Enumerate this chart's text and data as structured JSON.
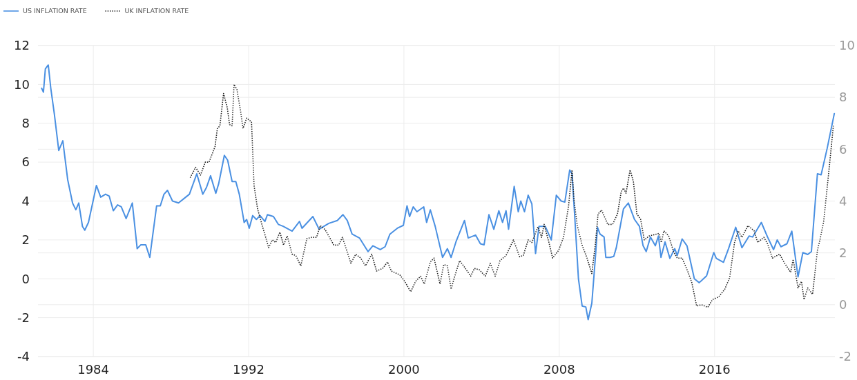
{
  "chart_data": {
    "type": "line",
    "xlim": [
      1981.15,
      2022.2
    ],
    "xticks": [
      1984,
      1992,
      2000,
      2008,
      2016
    ],
    "ylim": [
      -4,
      12
    ],
    "yticks": [
      -4,
      -2,
      0,
      2,
      4,
      6,
      8,
      10,
      12
    ],
    "y2lim": [
      -2,
      10
    ],
    "y2ticks": [
      -2,
      0,
      2,
      4,
      6,
      8,
      10
    ],
    "grid": true,
    "legend": "top left",
    "marker": "none",
    "series": [
      {
        "name": "US INFLATION RATE",
        "color": "#4a90e2",
        "line_style": "solid",
        "x": [
          1981.34,
          1981.43,
          1981.53,
          1981.68,
          1981.81,
          1981.99,
          1982.22,
          1982.43,
          1982.68,
          1982.93,
          1983.1,
          1983.25,
          1983.44,
          1983.56,
          1983.75,
          1984.16,
          1984.38,
          1984.63,
          1984.82,
          1985.03,
          1985.25,
          1985.44,
          1985.69,
          1986.01,
          1986.26,
          1986.45,
          1986.7,
          1986.91,
          1987.26,
          1987.45,
          1987.64,
          1987.82,
          1988.08,
          1988.39,
          1988.76,
          1988.95,
          1989.33,
          1989.64,
          1989.83,
          1990.04,
          1990.31,
          1990.46,
          1990.75,
          1990.92,
          1991.15,
          1991.34,
          1991.52,
          1991.77,
          1991.9,
          1992.03,
          1992.21,
          1992.4,
          1992.59,
          1992.84,
          1992.97,
          1993.28,
          1993.53,
          1993.78,
          1994.24,
          1994.62,
          1994.75,
          1995.31,
          1995.63,
          1996.13,
          1996.57,
          1996.86,
          1997.08,
          1997.33,
          1997.71,
          1998.15,
          1998.4,
          1998.78,
          1999.03,
          1999.28,
          1999.66,
          1999.97,
          2000.16,
          2000.29,
          2000.48,
          2000.67,
          2001.02,
          2001.17,
          2001.36,
          2001.61,
          2001.99,
          2002.24,
          2002.43,
          2002.68,
          2003.12,
          2003.31,
          2003.69,
          2003.94,
          2004.13,
          2004.38,
          2004.63,
          2004.89,
          2005.08,
          2005.26,
          2005.39,
          2005.68,
          2005.89,
          2006.02,
          2006.21,
          2006.4,
          2006.59,
          2006.78,
          2006.96,
          2007.28,
          2007.59,
          2007.85,
          2008.1,
          2008.29,
          2008.54,
          2008.66,
          2008.79,
          2008.99,
          2009.18,
          2009.37,
          2009.49,
          2009.68,
          2009.87,
          2009.97,
          2010.1,
          2010.31,
          2010.4,
          2010.62,
          2010.81,
          2010.94,
          2011.31,
          2011.56,
          2011.88,
          2012.13,
          2012.32,
          2012.48,
          2012.7,
          2012.95,
          2013.11,
          2013.24,
          2013.45,
          2013.7,
          2013.95,
          2014.08,
          2014.33,
          2014.58,
          2014.96,
          2015.21,
          2015.59,
          2015.96,
          2016.09,
          2016.46,
          2016.72,
          2017.09,
          2017.41,
          2017.78,
          2017.96,
          2018.41,
          2018.73,
          2019.04,
          2019.23,
          2019.42,
          2019.73,
          2019.98,
          2020.3,
          2020.55,
          2020.8,
          2020.99,
          2021.3,
          2021.49,
          2021.8,
          2022.17
        ],
        "values": [
          9.8,
          9.6,
          10.8,
          11.0,
          9.8,
          8.5,
          6.6,
          7.1,
          5.1,
          3.9,
          3.55,
          3.9,
          2.7,
          2.5,
          2.9,
          4.8,
          4.2,
          4.35,
          4.25,
          3.5,
          3.8,
          3.7,
          3.1,
          3.9,
          1.55,
          1.75,
          1.75,
          1.1,
          3.75,
          3.75,
          4.35,
          4.55,
          4.0,
          3.9,
          4.2,
          4.35,
          5.4,
          4.35,
          4.7,
          5.3,
          4.4,
          4.9,
          6.35,
          6.1,
          5.0,
          5.0,
          4.35,
          2.9,
          3.05,
          2.6,
          3.25,
          3.05,
          3.25,
          2.95,
          3.3,
          3.2,
          2.8,
          2.7,
          2.45,
          2.95,
          2.6,
          3.2,
          2.55,
          2.85,
          3.0,
          3.3,
          3.0,
          2.3,
          2.1,
          1.4,
          1.7,
          1.5,
          1.65,
          2.3,
          2.6,
          2.75,
          3.75,
          3.2,
          3.7,
          3.45,
          3.7,
          2.9,
          3.55,
          2.7,
          1.1,
          1.55,
          1.1,
          1.9,
          3.0,
          2.1,
          2.25,
          1.8,
          1.75,
          3.3,
          2.55,
          3.5,
          2.9,
          3.5,
          2.55,
          4.75,
          3.45,
          4.0,
          3.45,
          4.3,
          3.85,
          1.3,
          2.7,
          2.7,
          2.0,
          4.3,
          4.0,
          3.95,
          5.6,
          5.4,
          3.35,
          0.0,
          -1.4,
          -1.45,
          -2.1,
          -1.25,
          1.2,
          2.65,
          2.3,
          2.15,
          1.1,
          1.1,
          1.15,
          1.6,
          3.6,
          3.9,
          3.05,
          2.7,
          1.7,
          1.4,
          2.15,
          1.7,
          2.2,
          1.1,
          1.9,
          1.05,
          1.55,
          1.2,
          2.05,
          1.7,
          0.0,
          -0.2,
          0.15,
          1.35,
          1.05,
          0.85,
          1.55,
          2.65,
          1.6,
          2.2,
          2.15,
          2.9,
          2.15,
          1.5,
          2.0,
          1.65,
          1.8,
          2.45,
          0.1,
          1.35,
          1.25,
          1.4,
          5.4,
          5.35,
          6.7,
          8.5
        ]
      },
      {
        "name": "UK INFLATION RATE",
        "color": "#222222",
        "line_style": "dotted",
        "axis": "y2",
        "x": [
          1988.99,
          1989.27,
          1989.52,
          1989.77,
          1989.96,
          1990.27,
          1990.39,
          1990.52,
          1990.71,
          1990.9,
          1991.02,
          1991.15,
          1991.25,
          1991.4,
          1991.59,
          1991.71,
          1991.9,
          1992.15,
          1992.28,
          1992.46,
          1992.72,
          1992.9,
          1993.03,
          1993.22,
          1993.4,
          1993.61,
          1993.8,
          1993.99,
          1994.24,
          1994.43,
          1994.69,
          1995.0,
          1995.25,
          1995.5,
          1995.69,
          1995.94,
          1996.39,
          1996.64,
          1996.83,
          1997.27,
          1997.52,
          1997.77,
          1998.02,
          1998.34,
          1998.59,
          1998.9,
          1999.16,
          1999.35,
          1999.79,
          2000.04,
          2000.35,
          2000.6,
          2000.86,
          2001.05,
          2001.36,
          2001.55,
          2001.86,
          2002.05,
          2002.24,
          2002.43,
          2002.62,
          2002.87,
          2003.12,
          2003.44,
          2003.63,
          2003.88,
          2004.19,
          2004.45,
          2004.7,
          2004.95,
          2005.26,
          2005.64,
          2005.96,
          2006.15,
          2006.4,
          2006.59,
          2006.9,
          2007.09,
          2007.22,
          2007.47,
          2007.66,
          2007.97,
          2008.22,
          2008.48,
          2008.66,
          2008.76,
          2008.93,
          2009.18,
          2009.43,
          2009.68,
          2009.87,
          2010.0,
          2010.18,
          2010.5,
          2010.75,
          2011.0,
          2011.19,
          2011.31,
          2011.44,
          2011.65,
          2011.82,
          2012.0,
          2012.19,
          2012.38,
          2012.63,
          2012.88,
          2013.14,
          2013.26,
          2013.39,
          2013.64,
          2013.89,
          2014.08,
          2014.33,
          2014.64,
          2014.83,
          2015.08,
          2015.33,
          2015.65,
          2015.9,
          2016.21,
          2016.53,
          2016.78,
          2017.03,
          2017.22,
          2017.41,
          2017.72,
          2018.04,
          2018.22,
          2018.54,
          2018.73,
          2018.98,
          2019.35,
          2019.61,
          2019.92,
          2020.05,
          2020.3,
          2020.48,
          2020.61,
          2020.8,
          2021.05,
          2021.3,
          2021.43,
          2021.62,
          2021.93,
          2022.12
        ],
        "values": [
          4.9,
          5.3,
          5.0,
          5.5,
          5.5,
          6.1,
          6.8,
          6.9,
          8.15,
          7.6,
          6.95,
          6.9,
          8.5,
          8.3,
          7.45,
          6.8,
          7.2,
          7.05,
          4.6,
          3.7,
          3.0,
          2.55,
          2.2,
          2.5,
          2.4,
          2.8,
          2.3,
          2.65,
          1.95,
          1.9,
          1.5,
          2.55,
          2.6,
          2.6,
          3.05,
          2.9,
          2.3,
          2.3,
          2.6,
          1.6,
          1.95,
          1.8,
          1.5,
          1.95,
          1.3,
          1.4,
          1.65,
          1.3,
          1.15,
          0.9,
          0.5,
          0.9,
          1.1,
          0.8,
          1.65,
          1.8,
          0.8,
          1.55,
          1.5,
          0.6,
          1.1,
          1.7,
          1.45,
          1.1,
          1.4,
          1.35,
          1.1,
          1.6,
          1.1,
          1.7,
          1.9,
          2.5,
          1.85,
          1.9,
          2.5,
          2.4,
          3.0,
          2.6,
          3.1,
          2.4,
          1.8,
          2.1,
          2.6,
          3.8,
          5.2,
          4.05,
          3.05,
          2.3,
          1.8,
          1.2,
          2.4,
          3.5,
          3.65,
          3.1,
          3.1,
          3.5,
          4.35,
          4.5,
          4.3,
          5.2,
          4.75,
          3.5,
          3.3,
          2.5,
          2.65,
          2.7,
          2.75,
          2.4,
          2.85,
          2.65,
          2.05,
          1.8,
          1.8,
          1.25,
          0.85,
          -0.05,
          0.0,
          -0.1,
          0.2,
          0.3,
          0.6,
          1.05,
          2.4,
          2.85,
          2.6,
          3.05,
          2.85,
          2.4,
          2.6,
          2.35,
          1.8,
          1.95,
          1.6,
          1.25,
          1.75,
          0.65,
          0.9,
          0.2,
          0.65,
          0.4,
          2.1,
          2.5,
          3.2,
          5.45,
          6.9
        ]
      }
    ]
  }
}
